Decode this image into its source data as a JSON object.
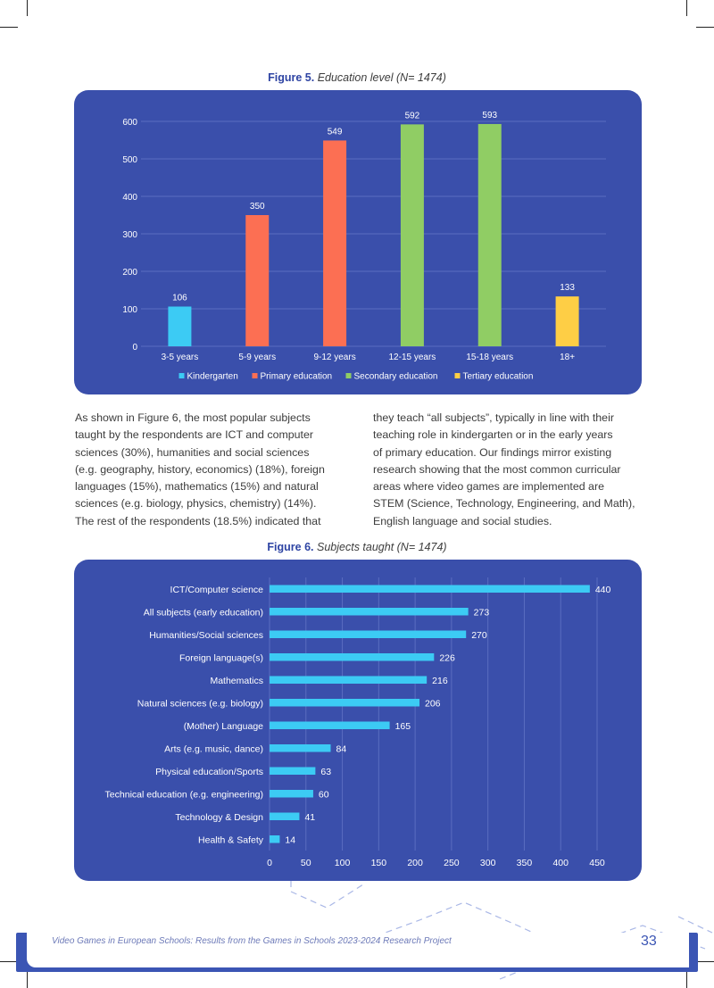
{
  "figure5": {
    "label": "Figure 5.",
    "caption": "Education level (N= 1474)"
  },
  "figure6": {
    "label": "Figure 6.",
    "caption": "Subjects taught (N= 1474)"
  },
  "body_text": {
    "left_lines": [
      "As shown in Figure 6, the most popular subjects",
      "taught by the respondents are ICT and computer",
      "sciences (30%), humanities and social sciences",
      "(e.g. geography, history, economics) (18%), foreign",
      "languages (15%), mathematics (15%) and natural",
      "sciences (e.g. biology, physics, chemistry) (14%).",
      "The rest of the respondents (18.5%) indicated that"
    ],
    "right_lines": [
      "they teach “all subjects”, typically in line with their",
      "teaching role in kindergarten or in the early years",
      "of primary education. Our findings mirror existing",
      "research showing that the most common curricular",
      "areas where video games are implemented are",
      "STEM (Science, Technology, Engineering, and Math),",
      "English language and social studies."
    ]
  },
  "footer": {
    "text": "Video Games in European Schools: Results from the Games in Schools 2023-2024 Research Project",
    "page_number": "33"
  },
  "chart_data": [
    {
      "type": "bar",
      "categories": [
        "3-5 years",
        "5-9 years",
        "9-12 years",
        "12-15 years",
        "15-18 years",
        "18+"
      ],
      "values": [
        106,
        350,
        549,
        592,
        593,
        133
      ],
      "series_of_category": [
        0,
        1,
        1,
        2,
        2,
        3
      ],
      "legend": [
        {
          "name": "Kindergarten",
          "color": "#3ccbf4"
        },
        {
          "name": "Primary education",
          "color": "#fc6f53"
        },
        {
          "name": "Secondary education",
          "color": "#90cd64"
        },
        {
          "name": "Tertiary education",
          "color": "#fece45"
        }
      ],
      "ylim": [
        0,
        600
      ],
      "yticks": [
        0,
        100,
        200,
        300,
        400,
        500,
        600
      ],
      "grid": true,
      "legend_position": "bottom",
      "background": "#3a4fab"
    },
    {
      "type": "bar",
      "orientation": "horizontal",
      "categories": [
        "ICT/Computer science",
        "All subjects (early education)",
        "Humanities/Social sciences",
        "Foreign language(s)",
        "Mathematics",
        "Natural sciences (e.g. biology)",
        "(Mother) Language",
        "Arts (e.g. music, dance)",
        "Physical education/Sports",
        "Technical education (e.g. engineering)",
        "Technology & Design",
        "Health & Safety"
      ],
      "values": [
        440,
        273,
        270,
        226,
        216,
        206,
        165,
        84,
        63,
        60,
        41,
        14
      ],
      "color": "#3ccbf4",
      "xlim": [
        0,
        450
      ],
      "xticks": [
        0,
        50,
        100,
        150,
        200,
        250,
        300,
        350,
        400,
        450
      ],
      "grid": true,
      "background": "#3a4fab"
    }
  ]
}
